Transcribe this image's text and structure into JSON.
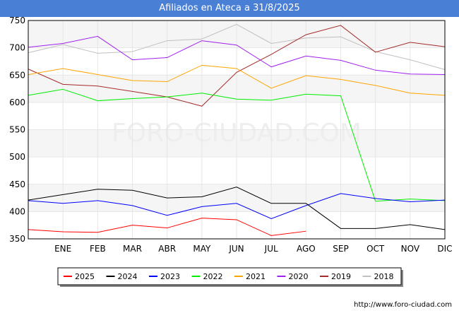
{
  "chart_data": {
    "type": "line",
    "title": "Afiliados en Ateca a 31/8/2025",
    "categories": [
      "",
      "ENE",
      "FEB",
      "MAR",
      "ABR",
      "MAY",
      "JUN",
      "JUL",
      "AGO",
      "SEP",
      "OCT",
      "NOV",
      "DIC"
    ],
    "ylim": [
      350,
      750
    ],
    "yticks": [
      350,
      400,
      450,
      500,
      550,
      600,
      650,
      700,
      750
    ],
    "series": [
      {
        "name": "2025",
        "color": "#ff0000",
        "values": [
          367,
          363,
          362,
          375,
          370,
          388,
          385,
          356,
          364,
          null,
          null,
          null,
          null
        ]
      },
      {
        "name": "2024",
        "color": "#000000",
        "values": [
          421,
          431,
          441,
          439,
          425,
          427,
          445,
          415,
          415,
          369,
          369,
          376,
          367
        ]
      },
      {
        "name": "2023",
        "color": "#0000ff",
        "values": [
          420,
          415,
          420,
          411,
          393,
          409,
          415,
          387,
          411,
          433,
          424,
          418,
          421
        ]
      },
      {
        "name": "2022",
        "color": "#00ee00",
        "values": [
          613,
          624,
          603,
          607,
          610,
          617,
          606,
          604,
          615,
          612,
          419,
          423,
          420
        ]
      },
      {
        "name": "2021",
        "color": "#ffa500",
        "values": [
          651,
          662,
          651,
          640,
          638,
          668,
          662,
          626,
          649,
          642,
          631,
          617,
          613
        ]
      },
      {
        "name": "2020",
        "color": "#a020f0",
        "values": [
          701,
          708,
          721,
          678,
          682,
          713,
          705,
          665,
          685,
          677,
          659,
          652,
          651
        ]
      },
      {
        "name": "2019",
        "color": "#a52a2a",
        "values": [
          661,
          633,
          630,
          620,
          610,
          593,
          655,
          688,
          724,
          741,
          692,
          710,
          702
        ]
      },
      {
        "name": "2018",
        "color": "#c0c0c0",
        "values": [
          691,
          706,
          690,
          693,
          713,
          716,
          743,
          708,
          718,
          720,
          693,
          678,
          660
        ]
      }
    ],
    "source": "http://www.foro-ciudad.com",
    "watermark": "FORO-CIUDAD.COM"
  }
}
